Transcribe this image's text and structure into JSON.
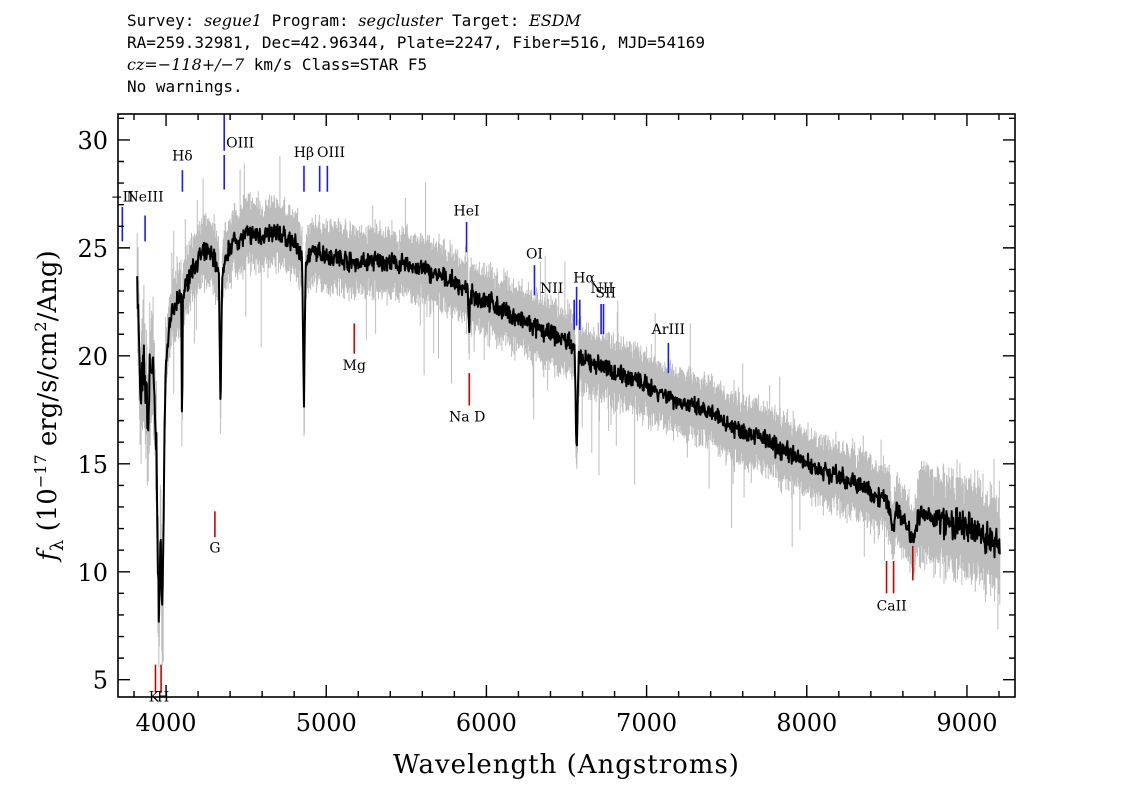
{
  "header": {
    "line1": {
      "survey_label": "Survey: ",
      "survey": "segue1",
      "program_label": " Program: ",
      "program": "segcluster",
      "target_label": " Target: ",
      "target": "ESDM"
    },
    "line2": "RA=259.32981, Dec=42.96344, Plate=2247, Fiber=516, MJD=54169",
    "line3": {
      "cz_label": "cz=",
      "cz_value": "−118+/−7",
      "cz_unit": " km/s Class=STAR F5"
    },
    "line4": "No warnings."
  },
  "chart_data": {
    "type": "line",
    "title": "",
    "xlabel": "Wavelength (Angstroms)",
    "ylabel_prefix": "f",
    "ylabel_sub": "λ",
    "ylabel_mid": " (10",
    "ylabel_exp": "−17",
    "ylabel_mid2": " erg/s/cm",
    "ylabel_exp2": "2",
    "ylabel_end": "/Ang)",
    "xlim": [
      3700,
      9300
    ],
    "ylim": [
      4.2,
      31.2
    ],
    "xticks": [
      4000,
      5000,
      6000,
      7000,
      8000,
      9000
    ],
    "yticks": [
      5,
      10,
      15,
      20,
      25,
      30
    ],
    "grid": false,
    "colors": {
      "spectrum": "#000000",
      "noise": "#bdbdbd",
      "emission": "#1a1aff",
      "absorption": "#d40000"
    },
    "continuum": [
      [
        3820,
        23.8
      ],
      [
        3840,
        17.8
      ],
      [
        3860,
        19.5
      ],
      [
        3890,
        17.0
      ],
      [
        3900,
        19.8
      ],
      [
        3920,
        19.2
      ],
      [
        3940,
        15.5
      ],
      [
        3955,
        8.0
      ],
      [
        3965,
        10.5
      ],
      [
        3980,
        9.5
      ],
      [
        3995,
        19.0
      ],
      [
        4020,
        21.5
      ],
      [
        4060,
        22.3
      ],
      [
        4095,
        22.8
      ],
      [
        4100,
        16.0
      ],
      [
        4105,
        22.8
      ],
      [
        4150,
        23.8
      ],
      [
        4200,
        24.5
      ],
      [
        4250,
        24.8
      ],
      [
        4300,
        24.6
      ],
      [
        4330,
        23.6
      ],
      [
        4340,
        17.5
      ],
      [
        4350,
        23.6
      ],
      [
        4400,
        25.2
      ],
      [
        4500,
        25.6
      ],
      [
        4600,
        25.6
      ],
      [
        4700,
        25.7
      ],
      [
        4800,
        25.2
      ],
      [
        4850,
        24.6
      ],
      [
        4861,
        17.3
      ],
      [
        4872,
        24.6
      ],
      [
        4950,
        24.8
      ],
      [
        5000,
        24.7
      ],
      [
        5100,
        24.5
      ],
      [
        5200,
        24.3
      ],
      [
        5300,
        24.4
      ],
      [
        5400,
        24.3
      ],
      [
        5500,
        24.2
      ],
      [
        5600,
        24.0
      ],
      [
        5700,
        23.7
      ],
      [
        5800,
        23.4
      ],
      [
        5880,
        23.0
      ],
      [
        5893,
        21.6
      ],
      [
        5905,
        22.8
      ],
      [
        6000,
        22.6
      ],
      [
        6100,
        22.1
      ],
      [
        6200,
        21.7
      ],
      [
        6300,
        21.3
      ],
      [
        6400,
        21.0
      ],
      [
        6500,
        20.7
      ],
      [
        6550,
        20.5
      ],
      [
        6563,
        15.2
      ],
      [
        6575,
        19.8
      ],
      [
        6650,
        19.7
      ],
      [
        6800,
        19.3
      ],
      [
        6900,
        19.0
      ],
      [
        7000,
        18.6
      ],
      [
        7100,
        18.3
      ],
      [
        7200,
        17.9
      ],
      [
        7300,
        17.6
      ],
      [
        7400,
        17.3
      ],
      [
        7500,
        16.9
      ],
      [
        7600,
        16.5
      ],
      [
        7700,
        16.3
      ],
      [
        7800,
        15.8
      ],
      [
        7900,
        15.5
      ],
      [
        8000,
        15.0
      ],
      [
        8100,
        14.7
      ],
      [
        8200,
        14.4
      ],
      [
        8300,
        14.1
      ],
      [
        8400,
        13.7
      ],
      [
        8500,
        13.3
      ],
      [
        8542,
        12.0
      ],
      [
        8560,
        13.0
      ],
      [
        8662,
        11.6
      ],
      [
        8700,
        12.6
      ],
      [
        8800,
        12.5
      ],
      [
        8900,
        12.2
      ],
      [
        9000,
        12.0
      ],
      [
        9100,
        11.7
      ],
      [
        9200,
        11.2
      ]
    ],
    "emission_lines": [
      {
        "label": "−II",
        "x": 3727,
        "y1": 25.3,
        "y2": 26.9,
        "ly": 27.15,
        "anchor": "middle"
      },
      {
        "label": "NeIII",
        "x": 3869,
        "y1": 25.3,
        "y2": 26.5,
        "ly": 27.15,
        "anchor": "middle"
      },
      {
        "label": "Hδ",
        "x": 4102,
        "y1": 27.6,
        "y2": 28.6,
        "ly": 29.05,
        "anchor": "middle"
      },
      {
        "label": "OIII",
        "x": 4363,
        "y1": 29.5,
        "y2": 31.2,
        "ly": 29.65,
        "anchor": "start",
        "lx": 4375
      },
      {
        "label": "OIII",
        "x": 4363,
        "y1": 27.7,
        "y2": 29.3,
        "ly": null,
        "anchor": "middle"
      },
      {
        "label": "Hβ",
        "x": 4861,
        "y1": 27.6,
        "y2": 28.8,
        "ly": 29.2,
        "anchor": "middle"
      },
      {
        "label": "OIII",
        "x": 4959,
        "y1": 27.6,
        "y2": 28.8,
        "ly": 29.2,
        "anchor": "middle",
        "lx": 5030
      },
      {
        "label": "OIII",
        "x": 5007,
        "y1": 27.6,
        "y2": 28.8,
        "ly": null,
        "anchor": "middle"
      },
      {
        "label": "HeI",
        "x": 5876,
        "y1": 24.8,
        "y2": 26.2,
        "ly": 26.5,
        "anchor": "middle"
      },
      {
        "label": "OI",
        "x": 6300,
        "y1": 22.8,
        "y2": 24.2,
        "ly": 24.5,
        "anchor": "middle"
      },
      {
        "label": "NII",
        "x": 6548,
        "y1": 21.2,
        "y2": 22.6,
        "ly": 22.9,
        "anchor": "end",
        "lx": 6480
      },
      {
        "label": "Hα",
        "x": 6563,
        "y1": 21.4,
        "y2": 23.2,
        "ly": 23.4,
        "anchor": "middle",
        "lx": 6610
      },
      {
        "label": "NII",
        "x": 6583,
        "y1": 21.2,
        "y2": 22.6,
        "ly": 22.9,
        "anchor": "start",
        "lx": 6650
      },
      {
        "label": "SII",
        "x": 6716,
        "y1": 21.0,
        "y2": 22.4,
        "ly": 22.7,
        "anchor": "middle",
        "lx": 6745
      },
      {
        "label": "SII",
        "x": 6731,
        "y1": 21.0,
        "y2": 22.4,
        "ly": null,
        "anchor": "middle"
      },
      {
        "label": "ArIII",
        "x": 7136,
        "y1": 19.2,
        "y2": 20.6,
        "ly": 21.0,
        "anchor": "middle"
      }
    ],
    "absorption_lines": [
      {
        "label": "K",
        "x": 3934,
        "y1": 4.4,
        "y2": 5.7,
        "ly": 4.0,
        "anchor": "middle",
        "lx": 3925
      },
      {
        "label": "H",
        "x": 3969,
        "y1": 4.4,
        "y2": 5.7,
        "ly": 4.0,
        "anchor": "middle",
        "lx": 3982
      },
      {
        "label": "G",
        "x": 4305,
        "y1": 11.6,
        "y2": 12.8,
        "ly": 10.9,
        "anchor": "middle"
      },
      {
        "label": "Mg",
        "x": 5175,
        "y1": 20.1,
        "y2": 21.5,
        "ly": 19.35,
        "anchor": "middle"
      },
      {
        "label": "Na D",
        "x": 5893,
        "y1": 17.7,
        "y2": 19.2,
        "ly": 16.95,
        "anchor": "middle",
        "lx": 5880
      },
      {
        "label": "CaII",
        "x": 8498,
        "y1": 9.0,
        "y2": 10.5,
        "ly": 8.2,
        "anchor": "middle",
        "lx": 8530
      },
      {
        "label": "CaII",
        "x": 8542,
        "y1": 9.0,
        "y2": 10.5,
        "ly": null,
        "anchor": "middle"
      },
      {
        "label": "CaII",
        "x": 8662,
        "y1": 9.6,
        "y2": 11.2,
        "ly": null,
        "anchor": "middle"
      }
    ]
  }
}
